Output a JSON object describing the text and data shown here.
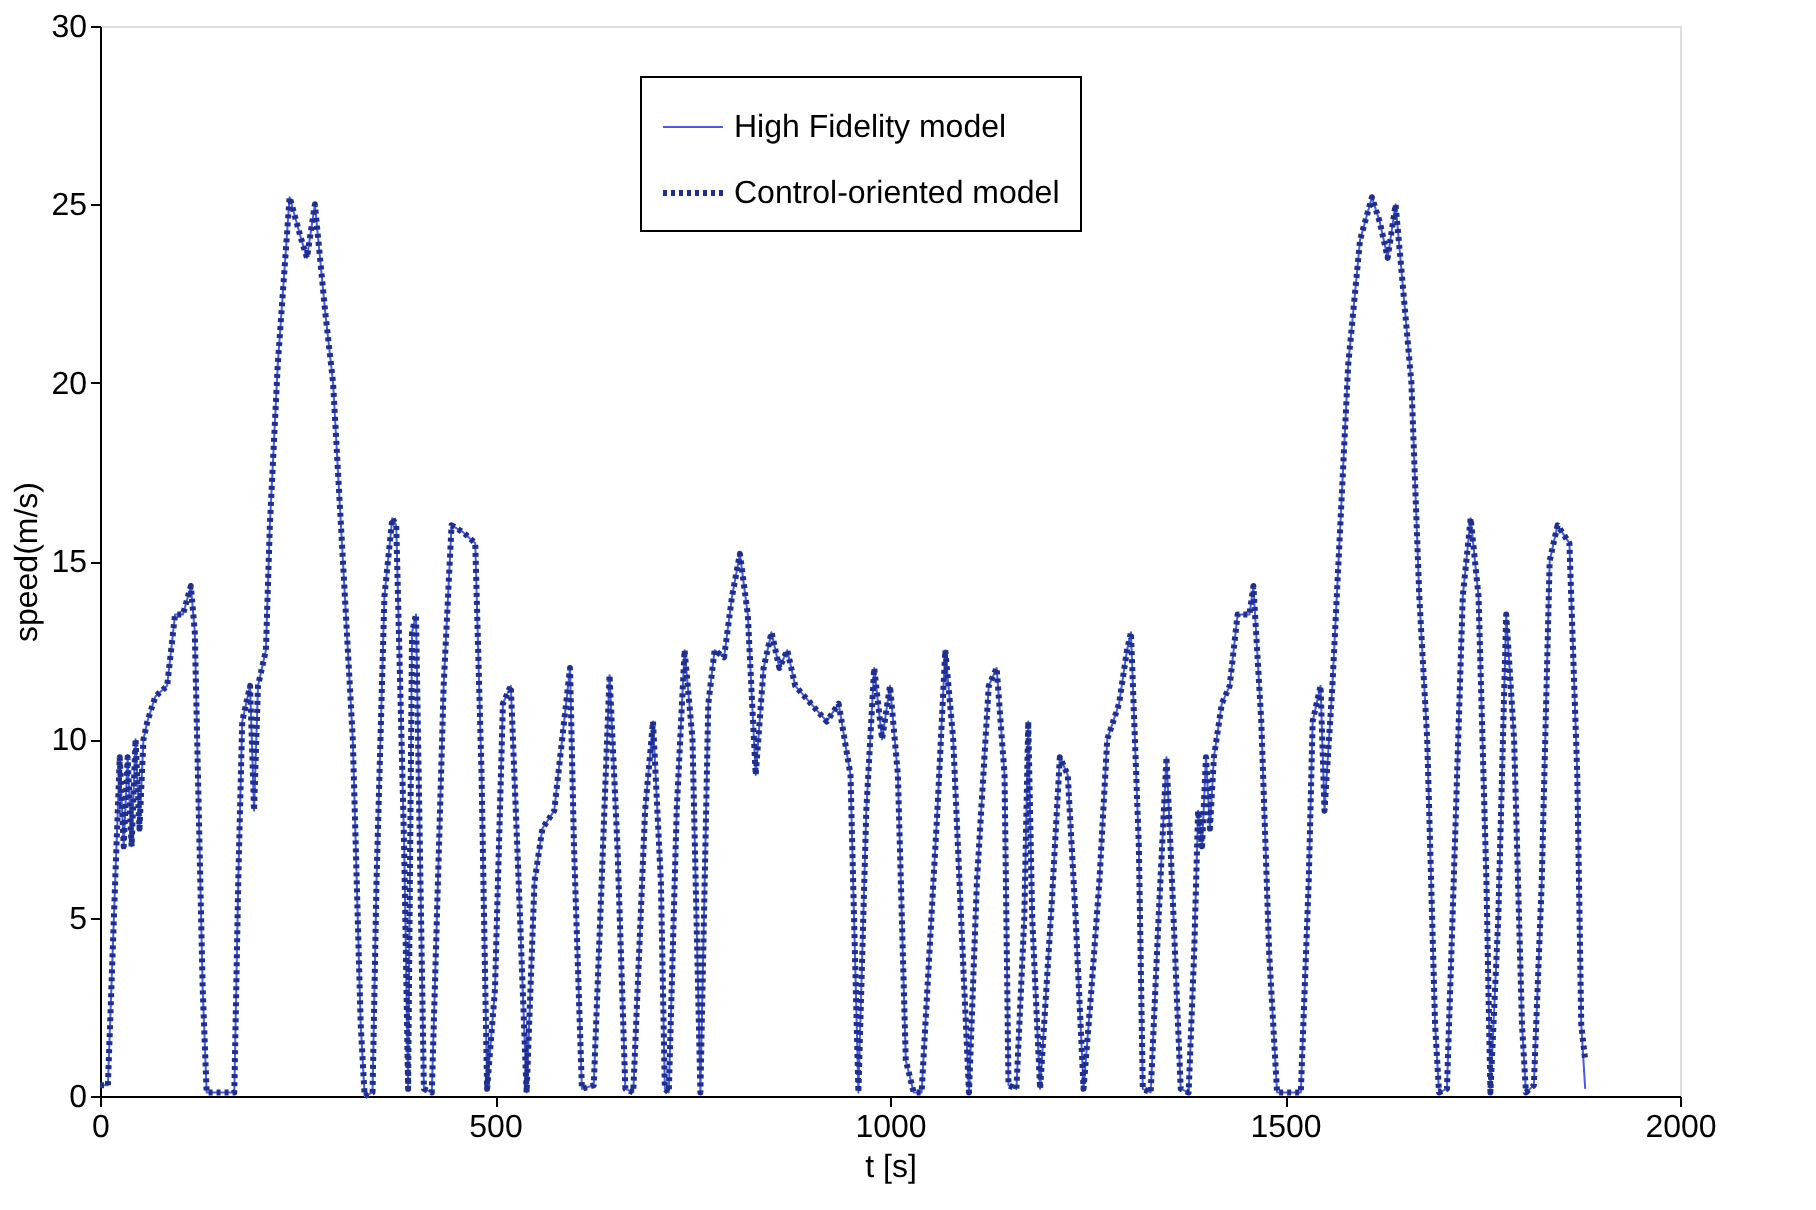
{
  "chart_data": {
    "type": "line",
    "xlabel": "t [s]",
    "ylabel": "speed(m/s)",
    "x": [
      0,
      10,
      20,
      25,
      30,
      35,
      40,
      45,
      50,
      55,
      60,
      70,
      85,
      95,
      105,
      115,
      120,
      130,
      135,
      170,
      175,
      180,
      190,
      195,
      200,
      210,
      215,
      225,
      240,
      255,
      262,
      272,
      285,
      295,
      305,
      320,
      330,
      335,
      345,
      350,
      360,
      370,
      375,
      385,
      390,
      395,
      400,
      410,
      420,
      435,
      445,
      460,
      475,
      483,
      490,
      500,
      510,
      520,
      530,
      540,
      550,
      560,
      575,
      585,
      595,
      600,
      610,
      625,
      635,
      645,
      655,
      665,
      675,
      690,
      700,
      710,
      715,
      720,
      730,
      740,
      750,
      760,
      770,
      778,
      790,
      800,
      810,
      820,
      830,
      840,
      850,
      860,
      870,
      880,
      900,
      920,
      935,
      950,
      960,
      970,
      980,
      990,
      1000,
      1010,
      1020,
      1030,
      1040,
      1060,
      1070,
      1080,
      1090,
      1100,
      1110,
      1125,
      1135,
      1145,
      1150,
      1160,
      1170,
      1175,
      1180,
      1190,
      1205,
      1215,
      1225,
      1235,
      1245,
      1255,
      1265,
      1275,
      1290,
      1300,
      1305,
      1315,
      1320,
      1330,
      1340,
      1350,
      1358,
      1368,
      1378,
      1385,
      1390,
      1395,
      1400,
      1405,
      1410,
      1420,
      1430,
      1440,
      1455,
      1460,
      1470,
      1480,
      1490,
      1520,
      1530,
      1535,
      1545,
      1550,
      1560,
      1570,
      1580,
      1595,
      1610,
      1620,
      1630,
      1640,
      1650,
      1660,
      1670,
      1680,
      1690,
      1695,
      1705,
      1715,
      1725,
      1735,
      1745,
      1755,
      1760,
      1770,
      1780,
      1790,
      1800,
      1805,
      1815,
      1825,
      1835,
      1845,
      1860,
      1870,
      1875,
      1880
    ],
    "series": [
      {
        "name": "High Fidelity model",
        "color": "#4a5ce6",
        "line_style": "solid",
        "values": [
          0.3,
          0.3,
          6.5,
          9.5,
          7,
          9.5,
          7,
          10,
          7.5,
          10,
          10.5,
          11.2,
          11.5,
          13.5,
          13.5,
          14.3,
          13,
          3,
          0.1,
          0.1,
          6,
          10.5,
          11.5,
          8,
          11.5,
          12.5,
          16,
          20.5,
          25.2,
          24,
          23.5,
          25,
          22,
          20,
          16,
          10,
          2,
          0,
          0.1,
          6,
          14,
          16.2,
          16,
          7,
          0.2,
          13,
          13.5,
          0.2,
          0.1,
          11.5,
          16,
          15.8,
          15.5,
          9,
          0.2,
          3,
          11,
          11.5,
          6,
          0.1,
          6,
          7.5,
          8,
          10,
          12,
          7,
          0.2,
          0.3,
          6,
          11.8,
          7,
          0.2,
          0.1,
          8,
          10.5,
          6,
          0.2,
          0.1,
          8,
          12.5,
          10,
          0.1,
          11,
          12.5,
          12.3,
          14,
          15.2,
          13.5,
          9,
          12,
          13,
          12,
          12.5,
          11.5,
          11,
          10.5,
          11,
          9,
          0.1,
          8,
          12,
          10,
          11.5,
          9,
          1,
          0.1,
          0.1,
          8,
          12.5,
          10,
          5,
          0.1,
          6,
          11.5,
          12,
          9,
          0.3,
          0.2,
          5,
          10.5,
          5,
          0.2,
          5.5,
          9.5,
          9,
          5,
          0.2,
          3,
          6,
          10,
          11,
          12.5,
          13,
          7,
          0.2,
          0.1,
          5,
          9.5,
          5.5,
          0.2,
          0.1,
          4,
          8,
          7,
          9.5,
          7.5,
          9.5,
          11,
          11.5,
          13.5,
          13.5,
          14.3,
          10.5,
          4,
          0.1,
          0.1,
          6,
          10.5,
          11.5,
          8,
          11.5,
          16,
          20.5,
          24,
          25.2,
          24.5,
          23.5,
          25,
          22.5,
          20,
          14,
          10,
          2,
          0.1,
          0.2,
          7,
          14,
          16.2,
          14,
          6,
          0.1,
          5,
          13.5,
          10,
          2,
          0.1,
          0.3,
          6,
          15,
          16,
          15.5,
          9,
          2,
          0.2
        ]
      },
      {
        "name": "Control-oriented model",
        "color": "#1f2f8f",
        "line_style": "dotted",
        "values": [
          0.3,
          0.3,
          6.5,
          9.5,
          7,
          9.5,
          7,
          10,
          7.5,
          10,
          10.5,
          11.2,
          11.5,
          13.5,
          13.5,
          14.3,
          13,
          3,
          0.1,
          0.1,
          6,
          10.5,
          11.5,
          8,
          11.5,
          12.5,
          16,
          20.5,
          25.2,
          24,
          23.5,
          25,
          22,
          20,
          16,
          10,
          2,
          0,
          0.1,
          6,
          14,
          16.2,
          16,
          7,
          0.2,
          13,
          13.5,
          0.2,
          0.1,
          11.5,
          16,
          15.8,
          15.5,
          9,
          0.2,
          3,
          11,
          11.5,
          6,
          0.1,
          6,
          7.5,
          8,
          10,
          12,
          7,
          0.2,
          0.3,
          6,
          11.8,
          7,
          0.2,
          0.1,
          8,
          10.5,
          6,
          0.2,
          0.1,
          8,
          12.5,
          10,
          0.1,
          11,
          12.5,
          12.3,
          14,
          15.2,
          13.5,
          9,
          12,
          13,
          12,
          12.5,
          11.5,
          11,
          10.5,
          11,
          9,
          0.1,
          8,
          12,
          10,
          11.5,
          9,
          1,
          0.1,
          0.1,
          8,
          12.5,
          10,
          5,
          0.1,
          6,
          11.5,
          12,
          9,
          0.3,
          0.2,
          5,
          10.5,
          5,
          0.2,
          5.5,
          9.5,
          9,
          5,
          0.2,
          3,
          6,
          10,
          11,
          12.5,
          13,
          7,
          0.2,
          0.1,
          5,
          9.5,
          5.5,
          0.2,
          0.1,
          4,
          8,
          7,
          9.5,
          7.5,
          9.5,
          11,
          11.5,
          13.5,
          13.5,
          14.3,
          10.5,
          4,
          0.1,
          0.1,
          6,
          10.5,
          11.5,
          8,
          11.5,
          16,
          20.5,
          24,
          25.2,
          24.5,
          23.5,
          25,
          22.5,
          20,
          14,
          10,
          2,
          0.1,
          0.2,
          7,
          14,
          16.2,
          14,
          6,
          0.1,
          5,
          13.5,
          10,
          2,
          0.1,
          0.3,
          6,
          15,
          16,
          15.5,
          9,
          2,
          1
        ]
      }
    ],
    "xlim": [
      0,
      2000
    ],
    "xticks": [
      0,
      500,
      1000,
      1500,
      2000
    ],
    "ylim": [
      0,
      30
    ],
    "yticks": [
      0,
      5,
      10,
      15,
      20,
      25,
      30
    ],
    "grid": false,
    "legend": "top",
    "marker": "none"
  }
}
